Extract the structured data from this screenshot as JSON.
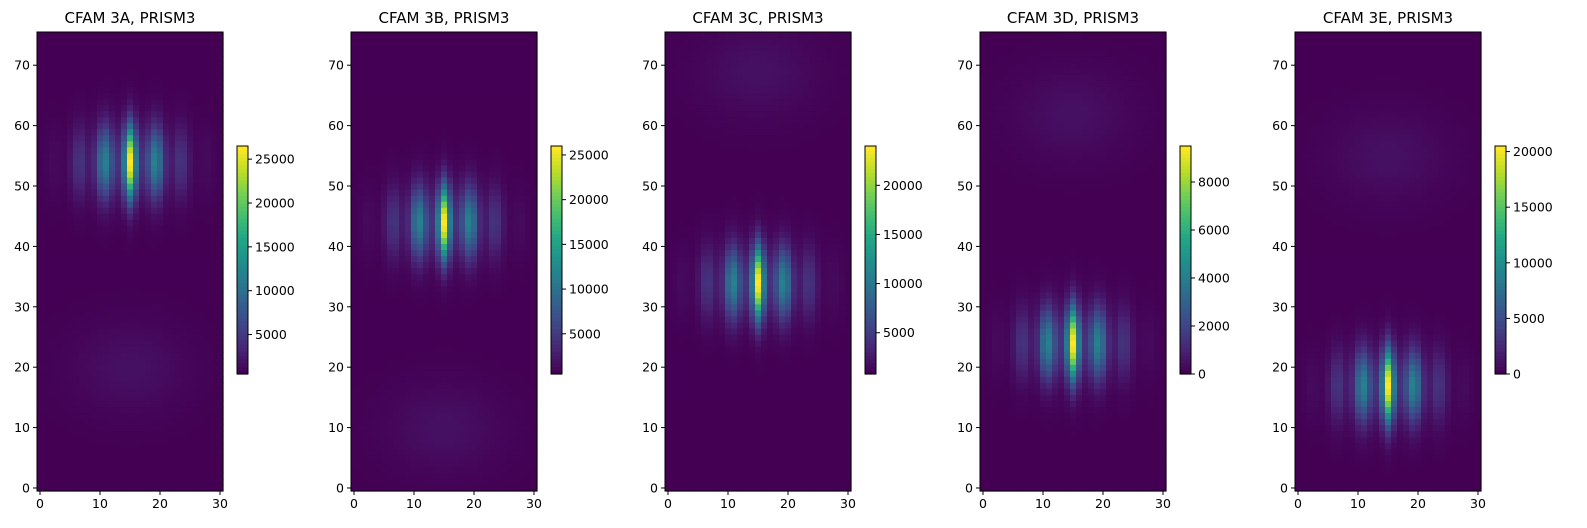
{
  "chart_data": [
    {
      "type": "heatmap",
      "title": "CFAM 3A, PRISM3",
      "x_range": [
        0,
        31
      ],
      "y_range": [
        0,
        76
      ],
      "xticks": [
        0,
        10,
        20,
        30
      ],
      "yticks": [
        0,
        10,
        20,
        30,
        40,
        50,
        60,
        70
      ],
      "colorbar": {
        "range": [
          500,
          26500
        ],
        "ticks": [
          5000,
          10000,
          15000,
          20000,
          25000
        ]
      },
      "peak": {
        "x": 15,
        "y": 54,
        "value": 26500
      },
      "sidelobe_columns": [
        11,
        15,
        19
      ],
      "faint_blob_center_y": 20
    },
    {
      "type": "heatmap",
      "title": "CFAM 3B, PRISM3",
      "x_range": [
        0,
        31
      ],
      "y_range": [
        0,
        76
      ],
      "xticks": [
        0,
        10,
        20,
        30
      ],
      "yticks": [
        0,
        10,
        20,
        30,
        40,
        50,
        60,
        70
      ],
      "colorbar": {
        "range": [
          500,
          26000
        ],
        "ticks": [
          5000,
          10000,
          15000,
          20000,
          25000
        ]
      },
      "peak": {
        "x": 15,
        "y": 44,
        "value": 26000
      },
      "sidelobe_columns": [
        11,
        15,
        19
      ],
      "faint_blob_center_y": 10
    },
    {
      "type": "heatmap",
      "title": "CFAM 3C, PRISM3",
      "x_range": [
        0,
        31
      ],
      "y_range": [
        0,
        76
      ],
      "xticks": [
        0,
        10,
        20,
        30
      ],
      "yticks": [
        0,
        10,
        20,
        30,
        40,
        50,
        60,
        70
      ],
      "colorbar": {
        "range": [
          800,
          24000
        ],
        "ticks": [
          5000,
          10000,
          15000,
          20000
        ]
      },
      "peak": {
        "x": 15,
        "y": 34,
        "value": 24000
      },
      "sidelobe_columns": [
        11,
        15,
        19
      ],
      "faint_blob_center_y": 69
    },
    {
      "type": "heatmap",
      "title": "CFAM 3D, PRISM3",
      "x_range": [
        0,
        31
      ],
      "y_range": [
        0,
        76
      ],
      "xticks": [
        0,
        10,
        20,
        30
      ],
      "yticks": [
        0,
        10,
        20,
        30,
        40,
        50,
        60,
        70
      ],
      "colorbar": {
        "range": [
          0,
          9500
        ],
        "ticks": [
          0,
          2000,
          4000,
          6000,
          8000
        ]
      },
      "peak": {
        "x": 15,
        "y": 24,
        "value": 9500
      },
      "sidelobe_columns": [
        11,
        15,
        20
      ],
      "faint_blob_center_y": 62
    },
    {
      "type": "heatmap",
      "title": "CFAM 3E, PRISM3",
      "x_range": [
        0,
        31
      ],
      "y_range": [
        0,
        76
      ],
      "xticks": [
        0,
        10,
        20,
        30
      ],
      "yticks": [
        0,
        10,
        20,
        30,
        40,
        50,
        60,
        70
      ],
      "colorbar": {
        "range": [
          0,
          20500
        ],
        "ticks": [
          0,
          5000,
          10000,
          15000,
          20000
        ]
      },
      "peak": {
        "x": 15,
        "y": 17,
        "value": 20500
      },
      "sidelobe_columns": [
        11,
        15,
        20
      ],
      "faint_blob_center_y": 55
    }
  ]
}
